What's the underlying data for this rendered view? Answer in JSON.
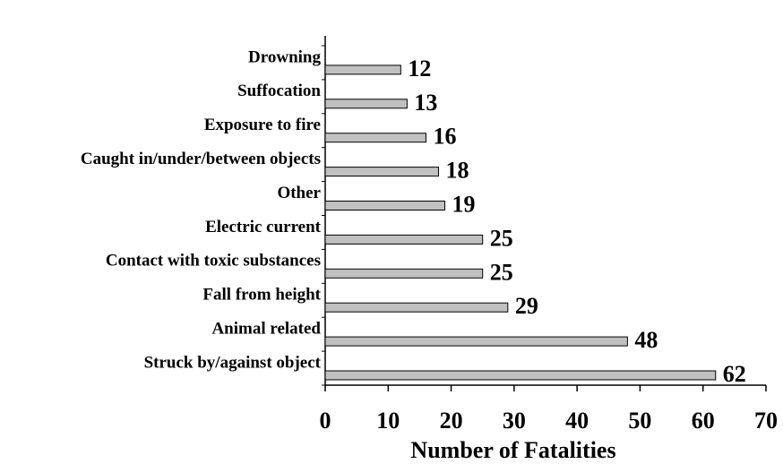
{
  "chart_data": {
    "type": "bar",
    "orientation": "horizontal",
    "categories": [
      "Drowning",
      "Suffocation",
      "Exposure to fire",
      "Caught in/under/between objects",
      "Other",
      "Electric current",
      "Contact with toxic substances",
      "Fall from height",
      "Animal related",
      "Struck by/against object"
    ],
    "values": [
      12,
      13,
      16,
      18,
      19,
      25,
      25,
      29,
      48,
      62
    ],
    "color": "#c0c0c0",
    "xlabel": "Number of Fatalities",
    "xlim": [
      0,
      70
    ],
    "xticks": [
      0,
      10,
      20,
      30,
      40,
      50,
      60,
      70
    ]
  }
}
